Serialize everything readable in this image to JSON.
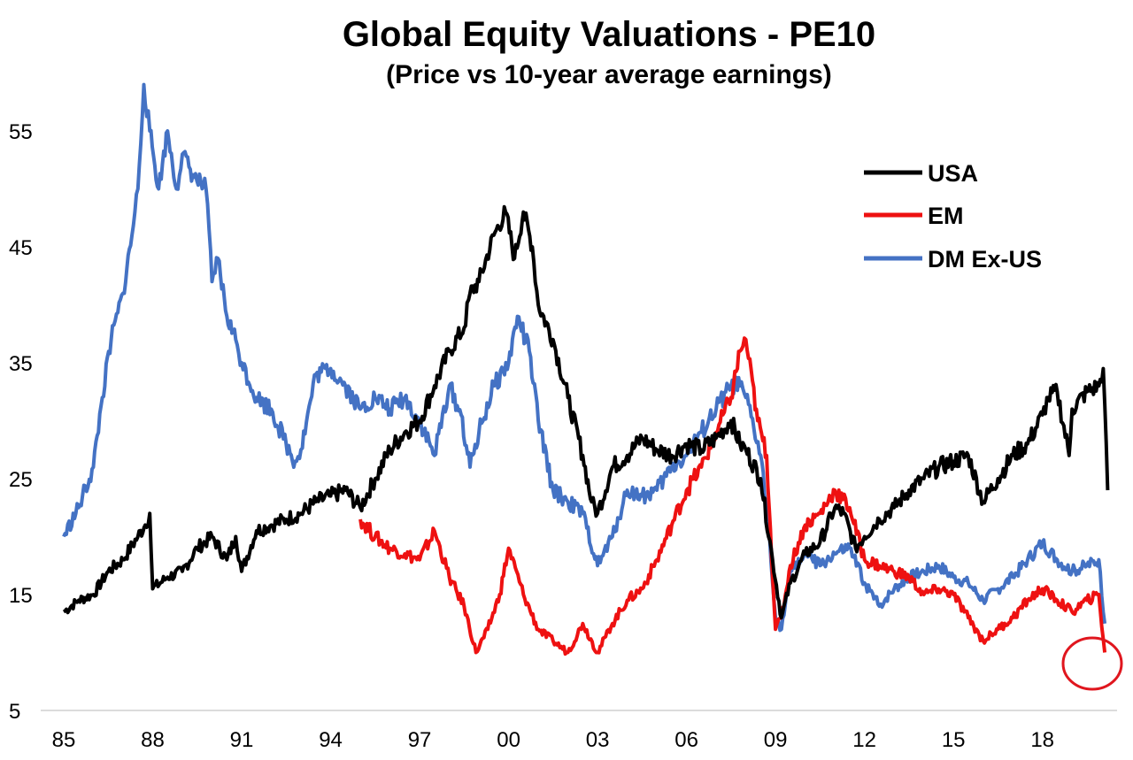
{
  "chart_data": {
    "type": "line",
    "title": "Global Equity Valuations - PE10",
    "subtitle": "(Price vs 10-year average earnings)",
    "xlim": [
      1985,
      2020.5
    ],
    "ylim": [
      5,
      60
    ],
    "x_tick_values": [
      1985,
      1988,
      1991,
      1994,
      1997,
      2000,
      2003,
      2006,
      2009,
      2012,
      2015,
      2018
    ],
    "x_tick_labels": [
      "85",
      "88",
      "91",
      "94",
      "97",
      "00",
      "03",
      "06",
      "09",
      "12",
      "15",
      "18"
    ],
    "y_ticks": [
      5,
      15,
      25,
      35,
      45,
      55
    ],
    "grid": false,
    "legend_position": "top-right",
    "annotation": "red circle highlighting latest EM and DM Ex-US values",
    "series": [
      {
        "name": "USA",
        "color": "#000000",
        "x": [
          1985.0,
          1985.5,
          1986.0,
          1986.5,
          1987.0,
          1987.5,
          1987.75,
          1987.9,
          1988.0,
          1988.5,
          1989.0,
          1989.5,
          1990.0,
          1990.5,
          1990.8,
          1991.0,
          1991.5,
          1992.0,
          1992.5,
          1993.0,
          1993.5,
          1994.0,
          1994.5,
          1995.0,
          1995.5,
          1996.0,
          1996.5,
          1997.0,
          1997.5,
          1998.0,
          1998.5,
          1998.7,
          1999.0,
          1999.5,
          1999.9,
          2000.2,
          2000.5,
          2000.8,
          2001.0,
          2001.5,
          2002.0,
          2002.5,
          2002.8,
          2003.0,
          2003.5,
          2004.0,
          2004.5,
          2005.0,
          2005.5,
          2006.0,
          2006.5,
          2007.0,
          2007.5,
          2007.8,
          2008.0,
          2008.5,
          2008.9,
          2009.2,
          2009.5,
          2010.0,
          2010.5,
          2011.0,
          2011.3,
          2011.7,
          2012.0,
          2012.5,
          2013.0,
          2013.5,
          2014.0,
          2014.5,
          2015.0,
          2015.5,
          2016.0,
          2016.5,
          2017.0,
          2017.5,
          2018.0,
          2018.2,
          2018.5,
          2018.9,
          2019.0,
          2019.5,
          2019.9,
          2020.05,
          2020.2
        ],
        "y": [
          13.5,
          14.5,
          15.0,
          17.0,
          18.0,
          20.0,
          21.0,
          22.0,
          15.5,
          16.5,
          17.0,
          19.0,
          20.0,
          18.0,
          20.0,
          17.0,
          20.5,
          21.0,
          21.5,
          22.0,
          23.0,
          23.5,
          24.0,
          22.5,
          25.0,
          27.5,
          29.0,
          30.0,
          33.0,
          36.0,
          38.0,
          41.0,
          42.0,
          46.0,
          48.0,
          44.0,
          48.0,
          45.0,
          40.0,
          37.0,
          32.0,
          27.0,
          23.0,
          22.0,
          26.0,
          27.0,
          28.5,
          27.5,
          27.0,
          28.0,
          27.5,
          28.5,
          30.0,
          28.0,
          27.5,
          25.0,
          18.0,
          13.0,
          16.0,
          18.5,
          19.5,
          22.5,
          22.0,
          19.0,
          20.0,
          21.5,
          22.5,
          24.0,
          25.0,
          26.0,
          26.5,
          27.0,
          23.0,
          25.0,
          27.0,
          28.0,
          30.5,
          32.0,
          32.5,
          27.0,
          31.0,
          32.5,
          33.0,
          34.5,
          24.0
        ]
      },
      {
        "name": "EM",
        "color": "#ee1111",
        "x": [
          1995.0,
          1995.5,
          1996.0,
          1996.5,
          1997.0,
          1997.5,
          1998.0,
          1998.5,
          1998.9,
          1999.3,
          1999.7,
          2000.0,
          2000.5,
          2001.0,
          2001.5,
          2002.0,
          2002.5,
          2003.0,
          2003.5,
          2004.0,
          2004.5,
          2005.0,
          2005.5,
          2006.0,
          2006.5,
          2007.0,
          2007.5,
          2007.8,
          2008.0,
          2008.4,
          2008.7,
          2009.0,
          2009.2,
          2009.5,
          2010.0,
          2010.5,
          2011.0,
          2011.5,
          2012.0,
          2012.5,
          2013.0,
          2013.5,
          2014.0,
          2014.5,
          2015.0,
          2015.5,
          2016.0,
          2016.5,
          2017.0,
          2017.5,
          2018.0,
          2018.5,
          2019.0,
          2019.5,
          2019.9,
          2020.1
        ],
        "y": [
          21.5,
          20.0,
          19.0,
          18.5,
          18.0,
          20.5,
          16.5,
          14.0,
          10.0,
          12.0,
          15.0,
          19.0,
          15.0,
          12.0,
          11.0,
          10.0,
          12.5,
          10.0,
          12.5,
          14.5,
          15.5,
          18.0,
          21.0,
          24.0,
          26.0,
          29.0,
          32.0,
          36.0,
          37.0,
          30.0,
          27.0,
          12.0,
          13.0,
          17.5,
          21.0,
          22.0,
          24.0,
          22.5,
          18.0,
          17.5,
          17.0,
          16.5,
          15.0,
          15.5,
          15.0,
          13.0,
          11.0,
          12.0,
          13.0,
          14.5,
          15.5,
          14.5,
          13.5,
          14.5,
          15.0,
          10.0
        ]
      },
      {
        "name": "DM Ex-US",
        "color": "#4472c4",
        "x": [
          1985.0,
          1985.5,
          1986.0,
          1986.3,
          1986.6,
          1987.0,
          1987.3,
          1987.5,
          1987.7,
          1987.9,
          1988.2,
          1988.5,
          1988.8,
          1989.0,
          1989.4,
          1989.8,
          1990.0,
          1990.2,
          1990.5,
          1990.8,
          1991.0,
          1991.5,
          1992.0,
          1992.5,
          1992.8,
          1993.0,
          1993.5,
          1994.0,
          1994.5,
          1995.0,
          1995.5,
          1996.0,
          1996.5,
          1997.0,
          1997.5,
          1998.0,
          1998.4,
          1998.7,
          1999.0,
          1999.5,
          2000.0,
          2000.3,
          2000.7,
          2001.0,
          2001.5,
          2002.0,
          2002.5,
          2003.0,
          2003.5,
          2004.0,
          2004.5,
          2005.0,
          2005.5,
          2006.0,
          2006.5,
          2007.0,
          2007.5,
          2007.8,
          2008.0,
          2008.5,
          2008.8,
          2009.0,
          2009.2,
          2009.5,
          2010.0,
          2010.5,
          2011.0,
          2011.5,
          2012.0,
          2012.5,
          2013.0,
          2013.5,
          2014.0,
          2014.5,
          2015.0,
          2015.5,
          2016.0,
          2016.5,
          2017.0,
          2017.5,
          2018.0,
          2018.5,
          2019.0,
          2019.5,
          2019.9,
          2020.1
        ],
        "y": [
          20.0,
          22.5,
          26.0,
          32.0,
          37.0,
          41.0,
          46.0,
          50.0,
          59.0,
          55.0,
          50.0,
          55.0,
          50.0,
          53.0,
          51.0,
          50.0,
          42.0,
          44.0,
          39.0,
          37.0,
          35.0,
          32.0,
          31.0,
          28.0,
          26.5,
          27.5,
          34.0,
          34.5,
          33.0,
          31.0,
          32.0,
          31.0,
          32.0,
          30.0,
          27.0,
          33.0,
          30.5,
          26.0,
          29.0,
          33.0,
          35.0,
          39.0,
          36.0,
          30.0,
          24.0,
          23.0,
          22.0,
          17.5,
          20.0,
          24.0,
          23.5,
          24.0,
          26.0,
          27.0,
          29.0,
          31.0,
          33.0,
          33.0,
          32.0,
          27.0,
          20.0,
          13.0,
          12.0,
          17.0,
          18.5,
          17.5,
          18.5,
          19.0,
          16.0,
          14.0,
          15.5,
          16.5,
          17.0,
          17.5,
          16.5,
          16.0,
          14.5,
          15.5,
          16.5,
          18.0,
          19.5,
          18.0,
          17.0,
          17.5,
          18.0,
          12.5
        ]
      }
    ]
  }
}
